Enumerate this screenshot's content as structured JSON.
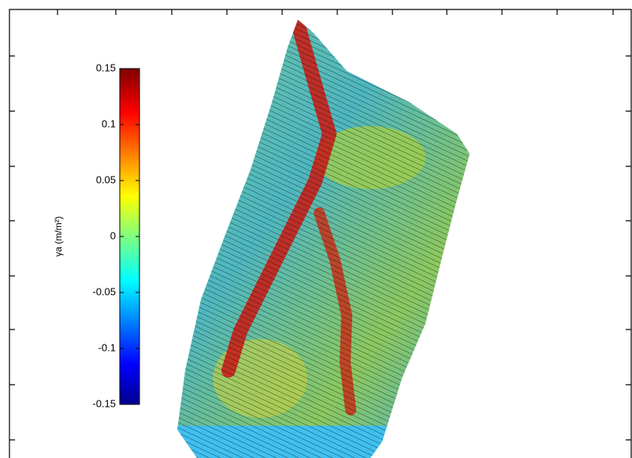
{
  "chart_data": {
    "type": "heatmap",
    "colorbar": {
      "label": "γa (m/m²)",
      "lim": [
        -0.15,
        0.15
      ],
      "ticks": [
        0.15,
        0.1,
        0.05,
        0,
        -0.05,
        -0.1,
        -0.15
      ]
    }
  }
}
